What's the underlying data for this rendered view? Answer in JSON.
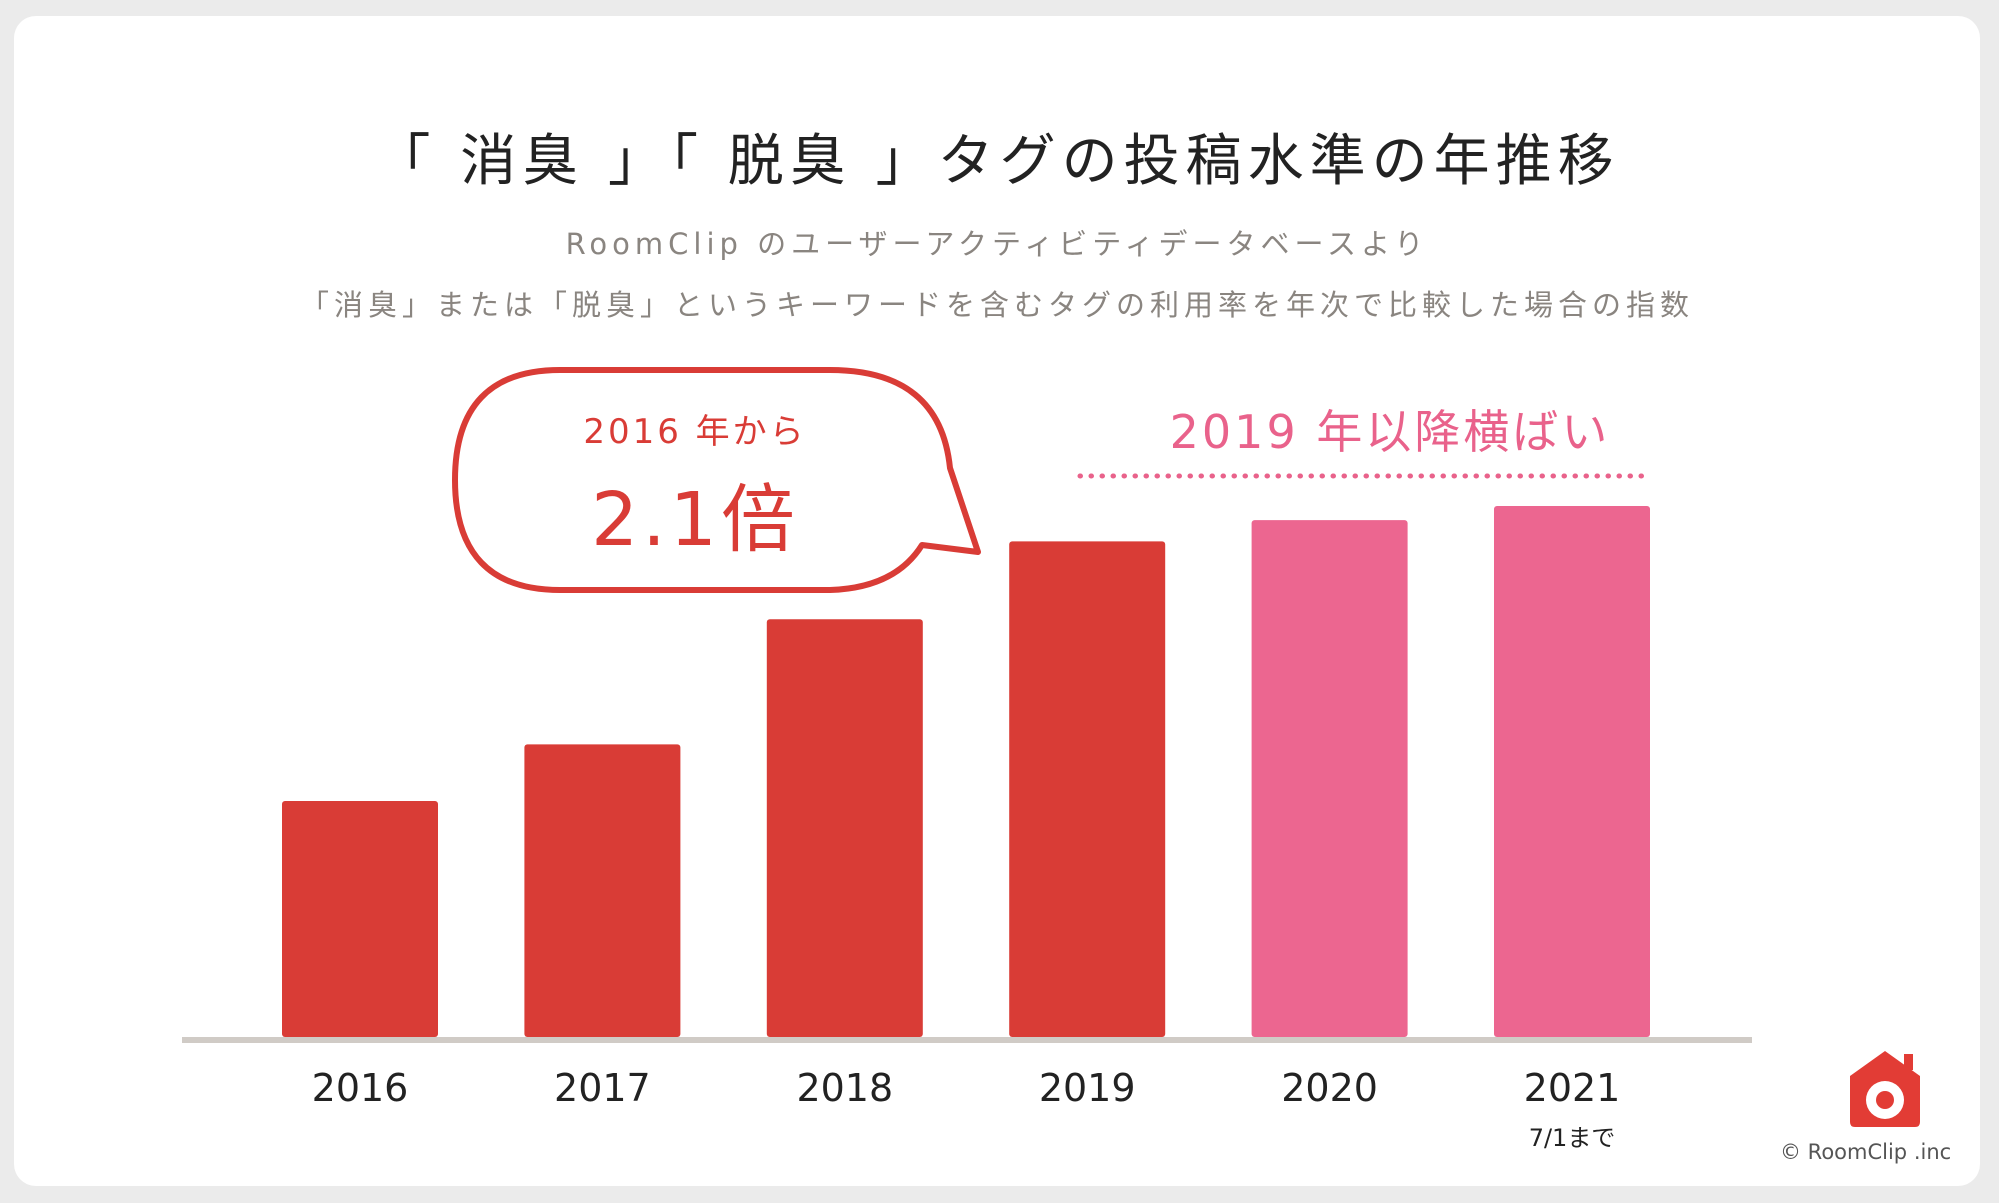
{
  "title": "「 消臭 」「 脱臭 」タグの投稿水準の年推移",
  "subtitle1": "RoomClip のユーザーアクティビティデータベースより",
  "subtitle2": "「消臭」または「脱臭」というキーワードを含むタグの利用率を年次で比較した場合の指数",
  "callout": {
    "line1": "2016 年から",
    "line2": "2.1倍"
  },
  "plateau_label": "2019 年以降横ばい",
  "copyright": "© RoomClip .inc",
  "logo_icon": "house-camera-icon",
  "colors": {
    "red": "#d93c36",
    "pink": "#ec6690",
    "axis": "#d0cbc6"
  },
  "chart_data": {
    "type": "bar",
    "categories": [
      "2016",
      "2017",
      "2018",
      "2019",
      "2020",
      "2021"
    ],
    "category_notes": [
      "",
      "",
      "",
      "",
      "",
      "7/1まで"
    ],
    "values": [
      1.0,
      1.24,
      1.77,
      2.1,
      2.19,
      2.25
    ],
    "bar_colors": [
      "#d93c36",
      "#d93c36",
      "#d93c36",
      "#d93c36",
      "#ec6690",
      "#ec6690"
    ],
    "title": "「 消臭 」「 脱臭 」タグの投稿水準の年推移",
    "xlabel": "",
    "ylabel": "",
    "ylim": [
      0,
      2.25
    ],
    "grid": false,
    "legend": "none"
  }
}
